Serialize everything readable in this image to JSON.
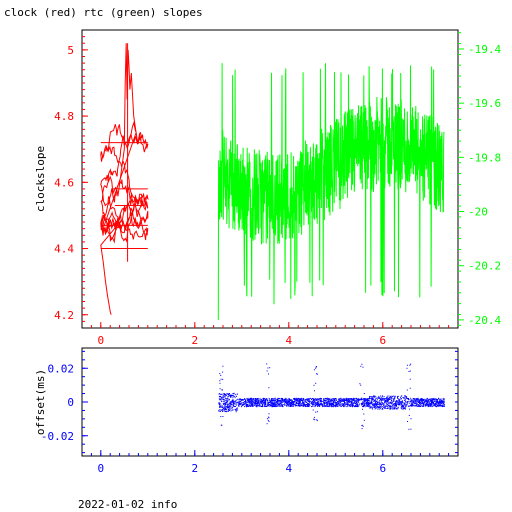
{
  "title": "clock (red) rtc (green) slopes",
  "footer": "2022-01-02 info",
  "colors": {
    "red": "#ff0000",
    "green": "#00ff00",
    "blue": "#0000ff",
    "axis": "#000000"
  },
  "chart_data": [
    {
      "type": "line",
      "ylabel": "clockslope",
      "xlim": [
        -0.4,
        7.6
      ],
      "ylim_left": [
        4.16,
        5.06
      ],
      "ylim_right": [
        -20.43,
        -19.33
      ],
      "x_ticks": [
        "0",
        "2",
        "4",
        "6"
      ],
      "y_ticks_left": [
        "4.2",
        "4.4",
        "4.6",
        "4.8",
        "5"
      ],
      "y_ticks_right": [
        "-20.4",
        "-20.2",
        "-20",
        "-19.8",
        "-19.6",
        "-19.4"
      ],
      "series": [
        {
          "name": "clock",
          "color": "#ff0000",
          "axis": "left",
          "x_range": [
            0.0,
            1.0
          ],
          "y_range": [
            4.2,
            5.02
          ]
        },
        {
          "name": "rtc",
          "color": "#00ff00",
          "axis": "right",
          "x_range": [
            2.5,
            7.3
          ],
          "y_range": [
            -20.4,
            -19.42
          ]
        }
      ]
    },
    {
      "type": "scatter",
      "ylabel": "offset(ms)",
      "xlim": [
        -0.4,
        7.6
      ],
      "ylim": [
        -0.032,
        0.032
      ],
      "x_ticks": [
        "0",
        "2",
        "4",
        "6"
      ],
      "y_ticks": [
        "0.02",
        "0",
        "-0.02"
      ],
      "series": [
        {
          "name": "offset",
          "color": "#0000ff",
          "x_range": [
            2.5,
            7.3
          ],
          "y_range": [
            -0.02,
            0.025
          ]
        }
      ]
    }
  ]
}
